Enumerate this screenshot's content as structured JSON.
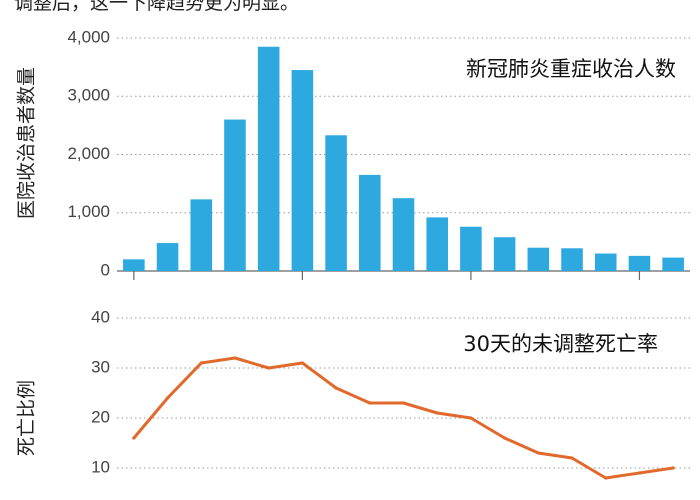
{
  "caption": "调整后，这一下降趋势更为明显。",
  "chart_data": [
    {
      "type": "bar",
      "title": "新冠肺炎重症收治人数",
      "ylabel": "医院收治患者数量",
      "xlabel": "",
      "ylim": [
        0,
        4000
      ],
      "yticks": [
        0,
        1000,
        2000,
        3000,
        4000
      ],
      "ytick_labels": [
        "0",
        "1,000",
        "2,000",
        "3,000",
        "4,000"
      ],
      "values": [
        200,
        480,
        1230,
        2600,
        3850,
        3450,
        2330,
        1650,
        1250,
        920,
        760,
        580,
        400,
        390,
        300,
        260,
        230
      ],
      "color": "#2ea9e0",
      "grid": true
    },
    {
      "type": "line",
      "title": "30天的未调整死亡率",
      "ylabel": "死亡比例",
      "xlabel": "",
      "ylim": [
        7,
        40
      ],
      "yticks": [
        10,
        20,
        30,
        40
      ],
      "ytick_labels": [
        "10",
        "20",
        "30",
        "40"
      ],
      "values": [
        16,
        24,
        31,
        32,
        30,
        31,
        26,
        23,
        23,
        21,
        20,
        16,
        13,
        12,
        8,
        9,
        10
      ],
      "color": "#e2692c",
      "grid": true
    }
  ]
}
